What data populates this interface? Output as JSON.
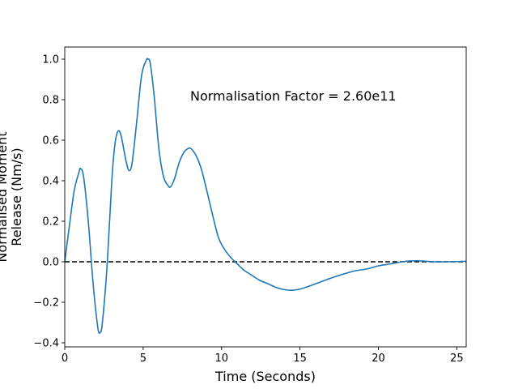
{
  "chart_data": {
    "type": "line",
    "xlabel": "Time (Seconds)",
    "ylabel_lines": [
      "Normalised Moment",
      "Release (Nm/s)"
    ],
    "annotation": "Normalisation Factor = 2.60e11",
    "annotation_position": {
      "x": 8.0,
      "y": 0.82
    },
    "xlim": [
      0,
      25.6
    ],
    "ylim": [
      -0.42,
      1.06
    ],
    "xticks": [
      0,
      5,
      10,
      15,
      20,
      25
    ],
    "xtick_labels": [
      "0",
      "5",
      "10",
      "15",
      "20",
      "25"
    ],
    "yticks": [
      -0.4,
      -0.2,
      0.0,
      0.2,
      0.4,
      0.6,
      0.8,
      1.0
    ],
    "ytick_labels": [
      "−0.4",
      "−0.2",
      "0.0",
      "0.2",
      "0.4",
      "0.6",
      "0.8",
      "1.0"
    ],
    "grid": false,
    "reference_line": {
      "y": 0.0,
      "style": "dashed",
      "color": "#000000"
    },
    "series": [
      {
        "color": "#1f77b4",
        "x": [
          0,
          0.3,
          0.6,
          0.9,
          1.0,
          1.2,
          1.5,
          1.8,
          2.1,
          2.25,
          2.4,
          2.7,
          3.0,
          3.2,
          3.4,
          3.6,
          3.9,
          4.1,
          4.3,
          4.6,
          4.9,
          5.2,
          5.3,
          5.45,
          5.7,
          6.0,
          6.3,
          6.6,
          6.75,
          7.0,
          7.3,
          7.6,
          7.9,
          8.1,
          8.4,
          8.7,
          9.0,
          9.4,
          9.8,
          10.2,
          10.6,
          11.0,
          11.4,
          11.8,
          12.4,
          13.0,
          13.6,
          14.2,
          14.6,
          15.0,
          15.6,
          16.3,
          17.0,
          17.8,
          18.5,
          19.3,
          20.0,
          20.8,
          21.5,
          22.0,
          22.5,
          23.0,
          23.5,
          24.2,
          25.0,
          25.6
        ],
        "y": [
          0.0,
          0.18,
          0.35,
          0.44,
          0.46,
          0.42,
          0.2,
          -0.1,
          -0.32,
          -0.35,
          -0.3,
          -0.02,
          0.4,
          0.58,
          0.645,
          0.62,
          0.5,
          0.45,
          0.49,
          0.7,
          0.92,
          0.995,
          1.0,
          0.98,
          0.82,
          0.56,
          0.42,
          0.375,
          0.37,
          0.41,
          0.49,
          0.54,
          0.56,
          0.555,
          0.52,
          0.46,
          0.37,
          0.24,
          0.12,
          0.06,
          0.02,
          -0.01,
          -0.04,
          -0.06,
          -0.09,
          -0.11,
          -0.13,
          -0.14,
          -0.14,
          -0.135,
          -0.12,
          -0.1,
          -0.08,
          -0.06,
          -0.045,
          -0.035,
          -0.02,
          -0.01,
          0.0,
          0.004,
          0.005,
          0.003,
          0.0,
          0.0,
          0.001,
          0.003
        ]
      }
    ]
  }
}
